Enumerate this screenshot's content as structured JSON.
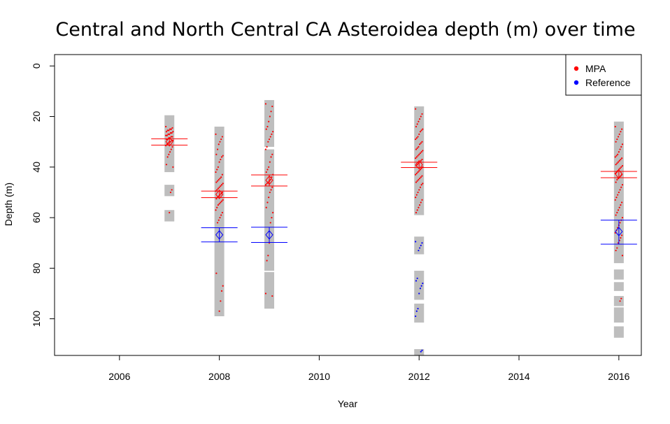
{
  "chart_data": {
    "type": "scatter",
    "title": "Central and North Central CA Asteroidea depth (m) over time",
    "xlabel": "Year",
    "ylabel": "Depth (m)",
    "xlim": [
      2004.7,
      2016.45
    ],
    "ylim": [
      114.5,
      -4.5
    ],
    "y_reversed": true,
    "x_ticks": [
      2006,
      2008,
      2010,
      2012,
      2014,
      2016
    ],
    "y_ticks": [
      0,
      20,
      40,
      60,
      80,
      100
    ],
    "legend": {
      "position": "top-right",
      "entries": [
        {
          "label": "MPA",
          "color": "#ff0000"
        },
        {
          "label": "Reference",
          "color": "#0000ff"
        }
      ]
    },
    "colors": {
      "mpa": "#ff0000",
      "reference": "#0000ff",
      "range_bar": "#bebebe"
    },
    "depth_ranges": [
      {
        "year": 2007,
        "segments": [
          [
            19.5,
            42
          ],
          [
            47,
            51.5
          ],
          [
            57,
            61.5
          ]
        ]
      },
      {
        "year": 2008,
        "segments": [
          [
            24,
            99
          ]
        ]
      },
      {
        "year": 2009,
        "segments": [
          [
            13.5,
            32
          ],
          [
            33,
            81
          ],
          [
            81.5,
            96
          ]
        ]
      },
      {
        "year": 2012,
        "segments": [
          [
            16,
            59
          ],
          [
            67.5,
            74.5
          ],
          [
            81,
            92.5
          ],
          [
            94,
            101.5
          ],
          [
            112,
            114.5
          ]
        ]
      },
      {
        "year": 2016,
        "segments": [
          [
            22,
            78
          ],
          [
            80.5,
            84.5
          ],
          [
            85.5,
            89
          ],
          [
            91,
            95
          ],
          [
            95.5,
            101.5
          ],
          [
            103,
            107.5
          ]
        ]
      }
    ],
    "series": [
      {
        "name": "MPA",
        "means": [
          {
            "year": 2007,
            "mean": 30,
            "ci": [
              28.8,
              31.3
            ]
          },
          {
            "year": 2008,
            "mean": 50.8,
            "ci": [
              49.5,
              52.1
            ]
          },
          {
            "year": 2009,
            "mean": 45.2,
            "ci": [
              43.1,
              47.5
            ]
          },
          {
            "year": 2012,
            "mean": 39.1,
            "ci": [
              38.1,
              40.2
            ]
          },
          {
            "year": 2016,
            "mean": 42.8,
            "ci": [
              41.7,
              44.2
            ]
          }
        ],
        "observations": [
          {
            "year": 2007,
            "depths": [
              24,
              24.5,
              25,
              25,
              25.5,
              25.5,
              26,
              26,
              26.5,
              26.5,
              27,
              27,
              27.5,
              27.5,
              28,
              28,
              28.5,
              28.5,
              29,
              29,
              29.5,
              29.5,
              30,
              30,
              30.5,
              31,
              31.5,
              32,
              33,
              34,
              35,
              36,
              39,
              40,
              49,
              50,
              58
            ]
          },
          {
            "year": 2008,
            "depths": [
              27,
              28,
              29,
              30,
              31,
              33,
              35,
              35.5,
              36,
              37,
              38,
              40,
              41,
              42,
              43,
              44,
              44.5,
              45,
              45.5,
              46,
              46.5,
              47,
              47.5,
              48,
              48.5,
              49,
              49.5,
              50,
              50.5,
              51,
              51.5,
              52,
              52.5,
              53,
              53.5,
              54,
              54.5,
              55,
              56,
              57,
              58,
              59,
              60,
              61,
              62,
              82,
              87,
              89,
              93,
              97
            ]
          },
          {
            "year": 2009,
            "depths": [
              15,
              16,
              18,
              20,
              22,
              24,
              25,
              26,
              27,
              28,
              29,
              30,
              32,
              33,
              35,
              36,
              38,
              40,
              41,
              42,
              43,
              44,
              45,
              45.5,
              46,
              46.5,
              47,
              48,
              49,
              50,
              52,
              54,
              56,
              58,
              60,
              62,
              70,
              75,
              77,
              90,
              91
            ]
          },
          {
            "year": 2012,
            "depths": [
              17,
              19,
              20,
              21,
              22,
              23,
              24,
              25,
              25.5,
              26,
              27,
              28,
              28.5,
              29,
              30,
              30.5,
              31,
              32,
              32.5,
              33,
              33.5,
              34,
              34.5,
              35,
              35.5,
              36,
              36.5,
              37,
              37.5,
              38,
              38.5,
              39,
              39.5,
              40,
              40.5,
              41,
              41.5,
              42,
              42.5,
              43,
              43.5,
              44,
              44.5,
              45,
              45.5,
              46,
              46.5,
              47,
              48,
              49,
              50,
              51,
              52,
              53,
              54,
              55,
              56,
              57,
              58
            ]
          },
          {
            "year": 2016,
            "depths": [
              24,
              25,
              26,
              27,
              28,
              29,
              30,
              31,
              32,
              33,
              34,
              35,
              35.5,
              36,
              36.5,
              37,
              37.5,
              38,
              38.5,
              39,
              39.5,
              40,
              40.5,
              41,
              41.5,
              42,
              42.5,
              43,
              43.5,
              44,
              44.5,
              45,
              46,
              47,
              48,
              49,
              50,
              51,
              52,
              53,
              54,
              55,
              56,
              57,
              58,
              59,
              60,
              61,
              62,
              63,
              64,
              65,
              66,
              67,
              68,
              69,
              70,
              72,
              73,
              75,
              92,
              93
            ]
          }
        ]
      },
      {
        "name": "Reference",
        "means": [
          {
            "year": 2008,
            "mean": 66.8,
            "ci": [
              64,
              69.6
            ]
          },
          {
            "year": 2009,
            "mean": 66.8,
            "ci": [
              63.8,
              69.8
            ]
          },
          {
            "year": 2016,
            "mean": 65.5,
            "ci": [
              61,
              70.5
            ]
          }
        ],
        "observations": [
          {
            "year": 2012,
            "depths": [
              69.5,
              70,
              71,
              72,
              73,
              84,
              85,
              86,
              87,
              88,
              90,
              96,
              97,
              99,
              112.5,
              113
            ]
          }
        ]
      }
    ]
  }
}
